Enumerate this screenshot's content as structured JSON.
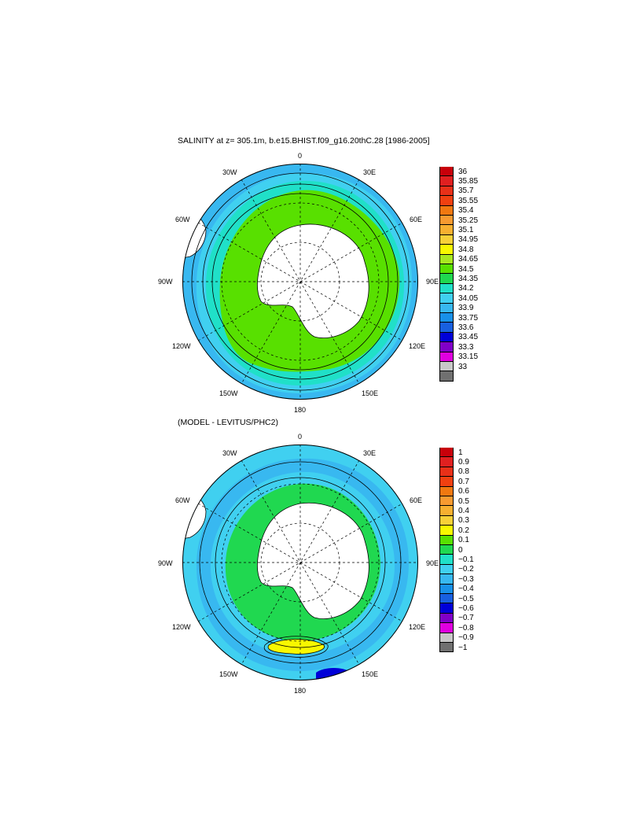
{
  "maps": [
    {
      "id": "salinity",
      "title": "SALINITY at z= 305.1m, b.e15.BHIST.f09_g16.20thC.28 [1986-2005]",
      "lon_labels": {
        "top": "0",
        "top_right": "30E",
        "right_upper": "60E",
        "right": "90E",
        "right_lower": "120E",
        "bottom_right": "150E",
        "bottom": "180",
        "bottom_left": "150W",
        "left_lower": "120W",
        "left": "90W",
        "left_upper": "60W",
        "top_left": "30W"
      },
      "colorbar": {
        "levels": [
          "36",
          "35.85",
          "35.7",
          "35.55",
          "35.4",
          "35.25",
          "35.1",
          "34.95",
          "34.8",
          "34.65",
          "34.5",
          "34.35",
          "34.2",
          "34.05",
          "33.9",
          "33.75",
          "33.6",
          "33.45",
          "33.3",
          "33.15",
          "33"
        ],
        "colors": [
          "#c8000a",
          "#e02020",
          "#e83018",
          "#f04010",
          "#f07810",
          "#f89a30",
          "#f8b030",
          "#f8d038",
          "#f8f800",
          "#a8e820",
          "#58e000",
          "#20d850",
          "#20e0c8",
          "#40d0f0",
          "#38b8f0",
          "#1890e8",
          "#1860e0",
          "#0000d8",
          "#8000c8",
          "#e000e0",
          "#c8c8c8",
          "#707070"
        ]
      },
      "zones": {
        "ring0": "#38b8f0",
        "ring1": "#40d0f0",
        "ring2": "#20e0c8",
        "ring3": "#58e000",
        "land": "#ffffff"
      }
    },
    {
      "id": "difference",
      "title": "(MODEL - LEVITUS/PHC2)",
      "lon_labels": {
        "top": "0",
        "top_right": "30E",
        "right_upper": "60E",
        "right": "90E",
        "right_lower": "120E",
        "bottom_right": "150E",
        "bottom": "180",
        "bottom_left": "150W",
        "left_lower": "120W",
        "left": "90W",
        "left_upper": "60W",
        "top_left": "30W"
      },
      "colorbar": {
        "levels": [
          "1",
          "0.9",
          "0.8",
          "0.7",
          "0.6",
          "0.5",
          "0.4",
          "0.3",
          "0.2",
          "0.1",
          "0",
          "−0.1",
          "−0.2",
          "−0.3",
          "−0.4",
          "−0.5",
          "−0.6",
          "−0.7",
          "−0.8",
          "−0.9",
          "−1"
        ],
        "colors": [
          "#c8000a",
          "#e02020",
          "#e83018",
          "#f04010",
          "#f07810",
          "#f89a30",
          "#f8b030",
          "#f8d038",
          "#f8f800",
          "#58e000",
          "#20d850",
          "#20e0c8",
          "#40d0f0",
          "#38b8f0",
          "#1890e8",
          "#1860e0",
          "#0000d8",
          "#8000c8",
          "#e000e0",
          "#c8c8c8",
          "#707070"
        ]
      },
      "zones": {
        "ring0": "#40d0f0",
        "ring1": "#38b8f0",
        "ring2": "#40d0f0",
        "ring3": "#20d850",
        "land": "#ffffff",
        "anomaly_pos": "#f8f800",
        "anomaly_neg": "#0000d8"
      }
    }
  ]
}
